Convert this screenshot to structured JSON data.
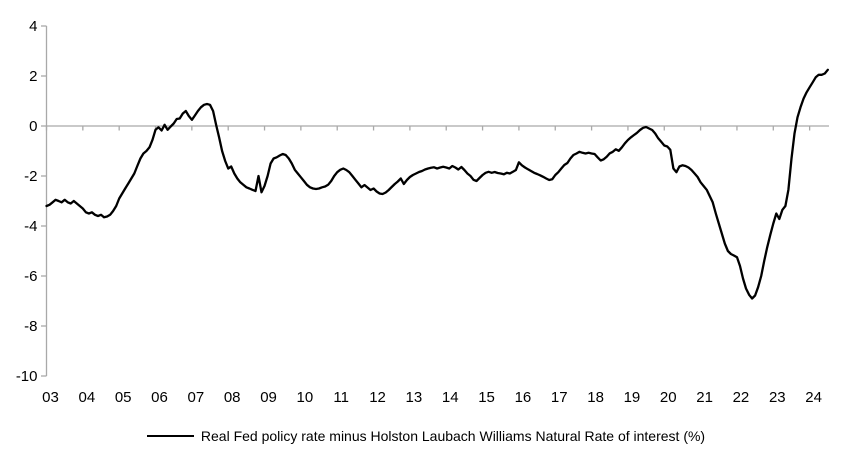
{
  "colors": {
    "series_line": "#000000",
    "axis_line": "#A9A9A9",
    "text": "#000000",
    "background": "#FFFFFF"
  },
  "legend": {
    "label": "Real Fed policy rate minus Holston Laubach Williams Natural Rate of interest (%)"
  },
  "chart_data": {
    "type": "line",
    "title": "",
    "xlabel": "",
    "ylabel": "",
    "frequency": "monthly",
    "x_start": "2003-01",
    "x_end": "2024-07",
    "x_tick_labels": [
      "03",
      "04",
      "05",
      "06",
      "07",
      "08",
      "09",
      "10",
      "11",
      "12",
      "13",
      "14",
      "15",
      "16",
      "17",
      "18",
      "19",
      "20",
      "21",
      "22",
      "23",
      "24"
    ],
    "y_tick_labels": [
      "4",
      "2",
      "0",
      "-2",
      "-4",
      "-6",
      "-8",
      "-10"
    ],
    "y_ticks": [
      4,
      2,
      0,
      -2,
      -4,
      -6,
      -8,
      -10
    ],
    "ylim": [
      -10,
      4
    ],
    "grid": false,
    "zero_line": true,
    "legend_position": "bottom",
    "series": [
      {
        "name": "Real Fed policy rate minus Holston Laubach Williams Natural Rate of interest (%)",
        "color": "#000000",
        "values": [
          -3.2,
          -3.15,
          -3.05,
          -2.95,
          -3.0,
          -3.05,
          -2.95,
          -3.05,
          -3.1,
          -3.0,
          -3.1,
          -3.2,
          -3.3,
          -3.45,
          -3.5,
          -3.45,
          -3.55,
          -3.6,
          -3.55,
          -3.65,
          -3.62,
          -3.55,
          -3.4,
          -3.2,
          -2.9,
          -2.7,
          -2.5,
          -2.3,
          -2.1,
          -1.9,
          -1.6,
          -1.3,
          -1.1,
          -1.0,
          -0.85,
          -0.55,
          -0.15,
          -0.05,
          -0.18,
          0.05,
          -0.15,
          -0.02,
          0.1,
          0.28,
          0.3,
          0.5,
          0.6,
          0.4,
          0.25,
          0.42,
          0.6,
          0.75,
          0.85,
          0.88,
          0.85,
          0.6,
          0.05,
          -0.45,
          -1.0,
          -1.4,
          -1.7,
          -1.62,
          -1.9,
          -2.1,
          -2.25,
          -2.35,
          -2.45,
          -2.5,
          -2.55,
          -2.6,
          -2.0,
          -2.65,
          -2.4,
          -2.0,
          -1.5,
          -1.3,
          -1.25,
          -1.18,
          -1.12,
          -1.16,
          -1.3,
          -1.5,
          -1.75,
          -1.9,
          -2.05,
          -2.2,
          -2.35,
          -2.45,
          -2.5,
          -2.52,
          -2.5,
          -2.45,
          -2.42,
          -2.35,
          -2.2,
          -2.0,
          -1.85,
          -1.75,
          -1.7,
          -1.76,
          -1.85,
          -2.0,
          -2.15,
          -2.3,
          -2.45,
          -2.36,
          -2.46,
          -2.56,
          -2.5,
          -2.62,
          -2.7,
          -2.72,
          -2.66,
          -2.56,
          -2.44,
          -2.32,
          -2.22,
          -2.1,
          -2.32,
          -2.16,
          -2.04,
          -1.96,
          -1.9,
          -1.84,
          -1.8,
          -1.74,
          -1.7,
          -1.67,
          -1.65,
          -1.7,
          -1.66,
          -1.63,
          -1.66,
          -1.7,
          -1.6,
          -1.66,
          -1.74,
          -1.64,
          -1.76,
          -1.9,
          -2.0,
          -2.15,
          -2.2,
          -2.08,
          -1.96,
          -1.87,
          -1.83,
          -1.87,
          -1.84,
          -1.88,
          -1.9,
          -1.93,
          -1.87,
          -1.9,
          -1.83,
          -1.76,
          -1.45,
          -1.57,
          -1.66,
          -1.73,
          -1.8,
          -1.87,
          -1.92,
          -1.97,
          -2.03,
          -2.1,
          -2.16,
          -2.13,
          -1.96,
          -1.85,
          -1.7,
          -1.56,
          -1.48,
          -1.3,
          -1.16,
          -1.1,
          -1.03,
          -1.07,
          -1.1,
          -1.07,
          -1.1,
          -1.12,
          -1.25,
          -1.38,
          -1.33,
          -1.23,
          -1.09,
          -1.03,
          -0.93,
          -0.99,
          -0.85,
          -0.69,
          -0.56,
          -0.45,
          -0.36,
          -0.27,
          -0.16,
          -0.07,
          -0.04,
          -0.1,
          -0.16,
          -0.3,
          -0.49,
          -0.63,
          -0.78,
          -0.82,
          -0.95,
          -1.7,
          -1.85,
          -1.62,
          -1.57,
          -1.6,
          -1.66,
          -1.76,
          -1.9,
          -2.04,
          -2.25,
          -2.4,
          -2.55,
          -2.8,
          -3.05,
          -3.5,
          -3.9,
          -4.3,
          -4.7,
          -5.0,
          -5.12,
          -5.18,
          -5.25,
          -5.6,
          -6.1,
          -6.5,
          -6.75,
          -6.9,
          -6.78,
          -6.45,
          -6.0,
          -5.4,
          -4.85,
          -4.35,
          -3.9,
          -3.5,
          -3.72,
          -3.35,
          -3.2,
          -2.55,
          -1.3,
          -0.3,
          0.35,
          0.75,
          1.1,
          1.35,
          1.55,
          1.75,
          1.95,
          2.05,
          2.05,
          2.1,
          2.25
        ]
      }
    ]
  }
}
